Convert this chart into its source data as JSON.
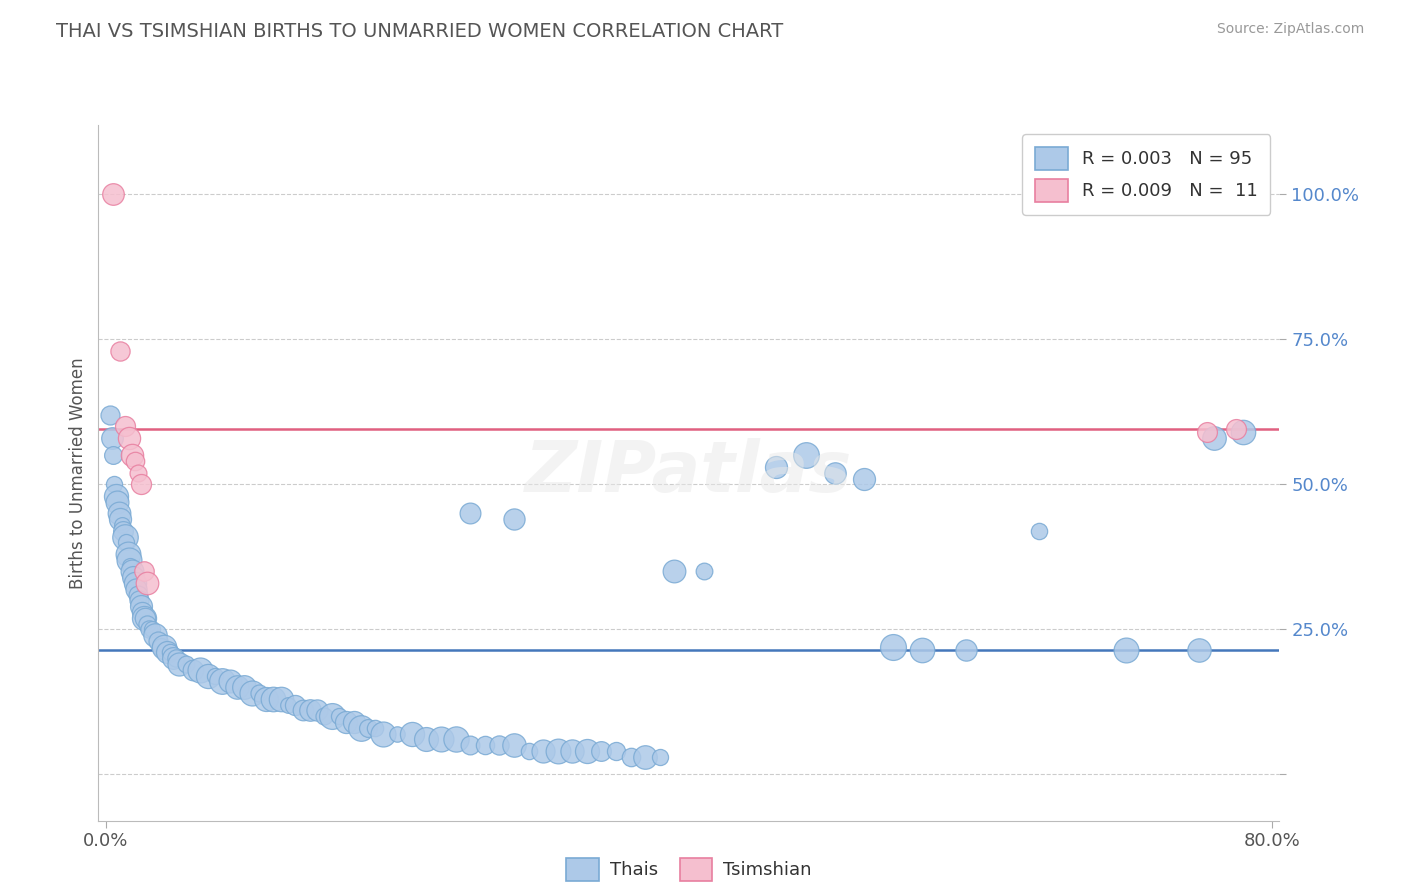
{
  "title": "THAI VS TSIMSHIAN BIRTHS TO UNMARRIED WOMEN CORRELATION CHART",
  "source": "Source: ZipAtlas.com",
  "ylabel": "Births to Unmarried Women",
  "ytick_labels": [
    "100.0%",
    "75.0%",
    "50.0%",
    "25.0%",
    ""
  ],
  "ytick_values": [
    1.0,
    0.75,
    0.5,
    0.25,
    0.0
  ],
  "xlim": [
    -0.005,
    0.805
  ],
  "ylim": [
    -0.08,
    1.12
  ],
  "blue_line_y": 0.215,
  "pink_line_y": 0.595,
  "blue_color": "#adc9e8",
  "pink_color": "#f5bfcf",
  "blue_edge": "#7aaad4",
  "pink_edge": "#e87fa0",
  "blue_line_color": "#4477bb",
  "pink_line_color": "#e06080",
  "title_color": "#555555",
  "thai_points": [
    [
      0.003,
      0.62
    ],
    [
      0.004,
      0.58
    ],
    [
      0.005,
      0.55
    ],
    [
      0.006,
      0.5
    ],
    [
      0.007,
      0.48
    ],
    [
      0.008,
      0.47
    ],
    [
      0.009,
      0.45
    ],
    [
      0.01,
      0.44
    ],
    [
      0.011,
      0.43
    ],
    [
      0.012,
      0.42
    ],
    [
      0.013,
      0.41
    ],
    [
      0.014,
      0.4
    ],
    [
      0.015,
      0.38
    ],
    [
      0.016,
      0.37
    ],
    [
      0.017,
      0.36
    ],
    [
      0.018,
      0.35
    ],
    [
      0.019,
      0.34
    ],
    [
      0.02,
      0.33
    ],
    [
      0.021,
      0.32
    ],
    [
      0.022,
      0.31
    ],
    [
      0.023,
      0.3
    ],
    [
      0.024,
      0.29
    ],
    [
      0.025,
      0.28
    ],
    [
      0.026,
      0.27
    ],
    [
      0.027,
      0.27
    ],
    [
      0.028,
      0.26
    ],
    [
      0.03,
      0.25
    ],
    [
      0.032,
      0.25
    ],
    [
      0.034,
      0.24
    ],
    [
      0.036,
      0.23
    ],
    [
      0.038,
      0.22
    ],
    [
      0.04,
      0.22
    ],
    [
      0.042,
      0.21
    ],
    [
      0.044,
      0.21
    ],
    [
      0.046,
      0.2
    ],
    [
      0.048,
      0.2
    ],
    [
      0.05,
      0.19
    ],
    [
      0.055,
      0.19
    ],
    [
      0.06,
      0.18
    ],
    [
      0.065,
      0.18
    ],
    [
      0.07,
      0.17
    ],
    [
      0.075,
      0.17
    ],
    [
      0.08,
      0.16
    ],
    [
      0.085,
      0.16
    ],
    [
      0.09,
      0.15
    ],
    [
      0.095,
      0.15
    ],
    [
      0.1,
      0.14
    ],
    [
      0.105,
      0.14
    ],
    [
      0.11,
      0.13
    ],
    [
      0.115,
      0.13
    ],
    [
      0.12,
      0.13
    ],
    [
      0.125,
      0.12
    ],
    [
      0.13,
      0.12
    ],
    [
      0.135,
      0.11
    ],
    [
      0.14,
      0.11
    ],
    [
      0.145,
      0.11
    ],
    [
      0.15,
      0.1
    ],
    [
      0.155,
      0.1
    ],
    [
      0.16,
      0.1
    ],
    [
      0.165,
      0.09
    ],
    [
      0.17,
      0.09
    ],
    [
      0.175,
      0.08
    ],
    [
      0.18,
      0.08
    ],
    [
      0.185,
      0.08
    ],
    [
      0.19,
      0.07
    ],
    [
      0.2,
      0.07
    ],
    [
      0.21,
      0.07
    ],
    [
      0.22,
      0.06
    ],
    [
      0.23,
      0.06
    ],
    [
      0.24,
      0.06
    ],
    [
      0.25,
      0.05
    ],
    [
      0.26,
      0.05
    ],
    [
      0.27,
      0.05
    ],
    [
      0.28,
      0.05
    ],
    [
      0.29,
      0.04
    ],
    [
      0.3,
      0.04
    ],
    [
      0.31,
      0.04
    ],
    [
      0.32,
      0.04
    ],
    [
      0.33,
      0.04
    ],
    [
      0.34,
      0.04
    ],
    [
      0.35,
      0.04
    ],
    [
      0.36,
      0.03
    ],
    [
      0.37,
      0.03
    ],
    [
      0.38,
      0.03
    ],
    [
      0.25,
      0.45
    ],
    [
      0.28,
      0.44
    ],
    [
      0.39,
      0.35
    ],
    [
      0.41,
      0.35
    ],
    [
      0.46,
      0.53
    ],
    [
      0.48,
      0.55
    ],
    [
      0.5,
      0.52
    ],
    [
      0.52,
      0.51
    ],
    [
      0.54,
      0.22
    ],
    [
      0.56,
      0.215
    ],
    [
      0.59,
      0.215
    ],
    [
      0.64,
      0.42
    ],
    [
      0.7,
      0.215
    ],
    [
      0.75,
      0.215
    ],
    [
      0.76,
      0.58
    ],
    [
      0.78,
      0.59
    ]
  ],
  "tsimshian_points": [
    [
      0.005,
      1.0
    ],
    [
      0.01,
      0.73
    ],
    [
      0.013,
      0.6
    ],
    [
      0.016,
      0.58
    ],
    [
      0.018,
      0.55
    ],
    [
      0.02,
      0.54
    ],
    [
      0.022,
      0.52
    ],
    [
      0.024,
      0.5
    ],
    [
      0.026,
      0.35
    ],
    [
      0.028,
      0.33
    ],
    [
      0.755,
      0.59
    ],
    [
      0.775,
      0.595
    ]
  ]
}
